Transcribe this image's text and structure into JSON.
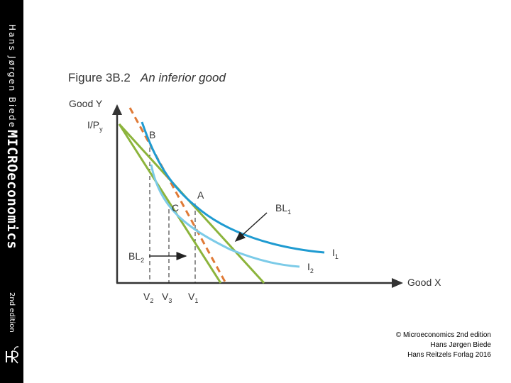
{
  "sidebar": {
    "author": "Hans Jørgen Biede",
    "book_title": "MICROeconomics",
    "edition": "2nd edition",
    "logo_glyph": "HR"
  },
  "figure": {
    "number": "Figure 3B.2",
    "title": "An inferior good",
    "y_axis_label": "Good Y",
    "y_intercept_label": "I/P",
    "y_intercept_sub": "y",
    "x_axis_label": "Good X",
    "points": {
      "a": "A",
      "b": "B",
      "c": "C"
    },
    "curves": {
      "bl1": "BL",
      "bl1_sub": "1",
      "bl2": "BL",
      "bl2_sub": "2",
      "i1": "I",
      "i1_sub": "1",
      "i2": "I",
      "i2_sub": "2"
    },
    "ticks": {
      "v2": "V",
      "v2_sub": "2",
      "v3": "V",
      "v3_sub": "3",
      "v1": "V",
      "v1_sub": "1"
    },
    "colors": {
      "budget_lines": "#8cb43c",
      "indifference_1": "#1f9bd1",
      "indifference_2": "#7ccbe8",
      "compensated_line": "#e07a36",
      "axes": "#333333"
    }
  },
  "copyright": {
    "line1": "© Microeconomics 2nd edition",
    "line2": "Hans Jørgen Biede",
    "line3": "Hans Reitzels Forlag 2016"
  }
}
